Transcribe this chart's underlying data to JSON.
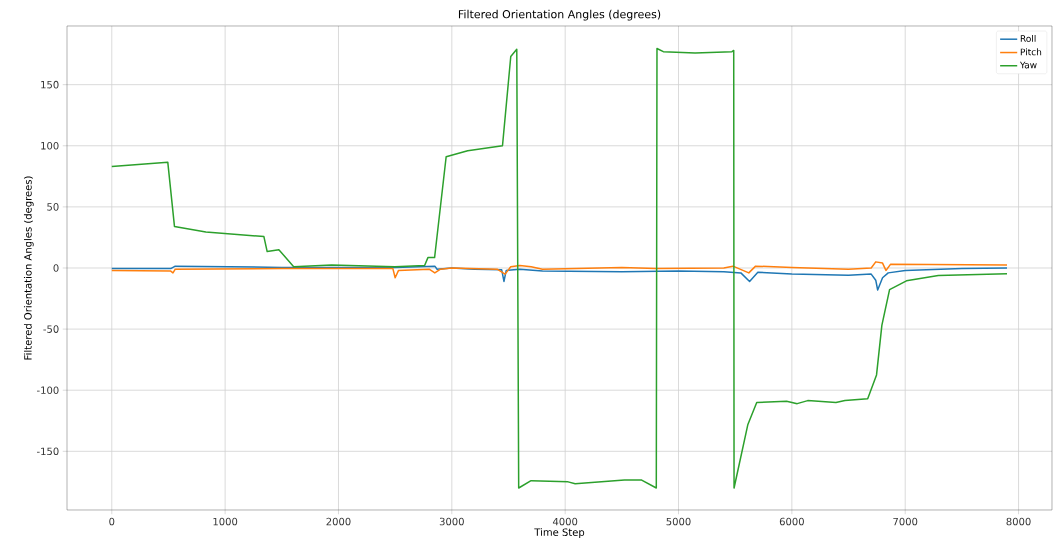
{
  "chart_data": {
    "type": "line",
    "title": "Filtered Orientation Angles (degrees)",
    "xlabel": "Time Step",
    "ylabel": "Filtered Orientation Angles (degrees)",
    "xlim": [
      -395,
      8295
    ],
    "ylim": [
      -198,
      198
    ],
    "xticks": [
      0,
      1000,
      2000,
      3000,
      4000,
      5000,
      6000,
      7000,
      8000
    ],
    "yticks": [
      -150,
      -100,
      -50,
      0,
      50,
      100,
      150
    ],
    "grid": true,
    "legend": "top right",
    "line_style": "solid",
    "marker": "none",
    "series": [
      {
        "name": "Roll",
        "color": "#1f77b4",
        "x": [
          0,
          520,
          560,
          1500,
          2000,
          2500,
          2850,
          2870,
          3000,
          3200,
          3440,
          3460,
          3480,
          3600,
          3800,
          4500,
          5000,
          5400,
          5550,
          5627,
          5700,
          6000,
          6500,
          6700,
          6740,
          6757,
          6800,
          6850,
          7000,
          7500,
          7898
        ],
        "values": [
          -0.5,
          -0.5,
          1.5,
          0.5,
          0.5,
          0.5,
          1.5,
          -1,
          0,
          -1,
          -1.5,
          -11,
          -2,
          -1,
          -2.5,
          -3,
          -2.5,
          -3,
          -4,
          -11,
          -3.5,
          -5,
          -6,
          -5,
          -10,
          -18,
          -8,
          -4,
          -2,
          -0.5,
          0
        ]
      },
      {
        "name": "Pitch",
        "color": "#ff7f0e",
        "x": [
          0,
          520,
          540,
          560,
          1500,
          2480,
          2500,
          2530,
          2800,
          2850,
          2900,
          3000,
          3400,
          3470,
          3520,
          3600,
          3700,
          3800,
          4500,
          4800,
          5400,
          5480,
          5620,
          5680,
          6000,
          6500,
          6700,
          6740,
          6800,
          6830,
          6870,
          7898
        ],
        "values": [
          -2,
          -2.5,
          -4,
          -1,
          -0.5,
          -0.5,
          -8,
          -2,
          -1,
          -4,
          -1,
          0,
          -1,
          -5,
          1,
          2,
          1,
          -1,
          0.5,
          -0.5,
          0,
          1.5,
          -4,
          1.5,
          0.5,
          -1,
          0,
          5,
          4,
          -2,
          3,
          2.5
        ]
      },
      {
        "name": "Yaw",
        "color": "#2ca02c",
        "x": [
          0,
          494,
          553,
          830,
          1342,
          1371,
          1474,
          1605,
          1939,
          2497,
          2760,
          2789,
          2848,
          2950,
          3140,
          3447,
          3520,
          3573,
          3590,
          3699,
          4026,
          4088,
          4523,
          4675,
          4804,
          4810,
          4866,
          5146,
          5472,
          5487,
          5490,
          5612,
          5690,
          5954,
          6047,
          6140,
          6389,
          6468,
          6669,
          6747,
          6794,
          6862,
          7011,
          7292,
          7898
        ],
        "values": [
          83,
          86.6,
          34,
          29.5,
          25.7,
          13.4,
          15,
          1,
          2.5,
          1,
          2,
          8.5,
          8.5,
          91,
          96,
          100,
          173,
          179,
          -180,
          -174,
          -175,
          -176.5,
          -173.5,
          -173.5,
          -180,
          179.6,
          177,
          176,
          177,
          178,
          -180,
          -128,
          -110,
          -109,
          -111,
          -108.5,
          -110,
          -108.5,
          -107,
          -87.5,
          -47,
          -17.7,
          -10.5,
          -6.1,
          -4.7
        ]
      }
    ]
  }
}
